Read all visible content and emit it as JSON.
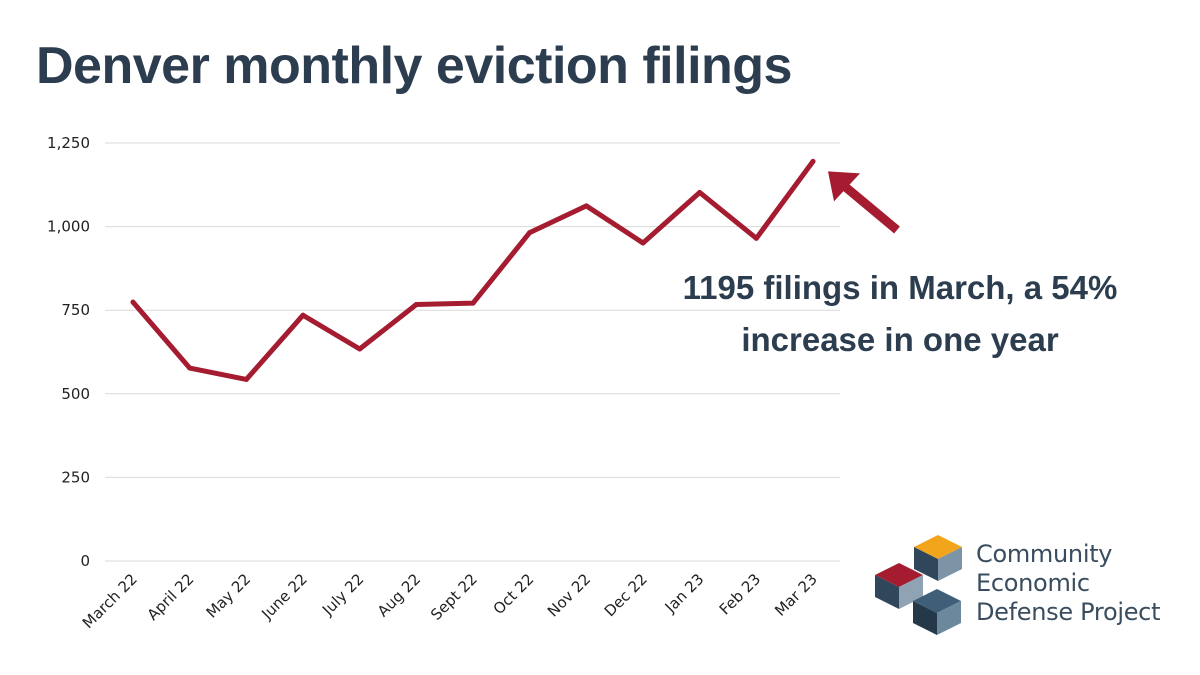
{
  "chart_data": {
    "type": "line",
    "title": "Denver monthly eviction filings",
    "xlabel": "",
    "ylabel": "",
    "categories": [
      "March 22",
      "April 22",
      "May 22",
      "June 22",
      "July 22",
      "Aug 22",
      "Sept 22",
      "Oct 22",
      "Nov 22",
      "Dec 22",
      "Jan 23",
      "Feb 23",
      "Mar 23"
    ],
    "series": [
      {
        "name": "Eviction filings",
        "values": [
          774,
          577,
          543,
          735,
          634,
          767,
          771,
          982,
          1062,
          951,
          1102,
          965,
          1195
        ],
        "color": "#a51c30"
      }
    ],
    "ylim": [
      0,
      1250
    ],
    "yticks": [
      0,
      250,
      500,
      750,
      1000,
      1250
    ],
    "ytick_labels": [
      "0",
      "250",
      "500",
      "750",
      "1,000",
      "1,250"
    ],
    "grid": true,
    "annotation": "1195 filings in March, a 54% increase in one year"
  },
  "colors": {
    "line": "#a51c30",
    "arrow": "#a51c30",
    "grid": "#d9d9d9",
    "title": "#2b3d4f"
  },
  "logo": {
    "lines": [
      "Community",
      "Economic",
      "Defense Project"
    ]
  }
}
